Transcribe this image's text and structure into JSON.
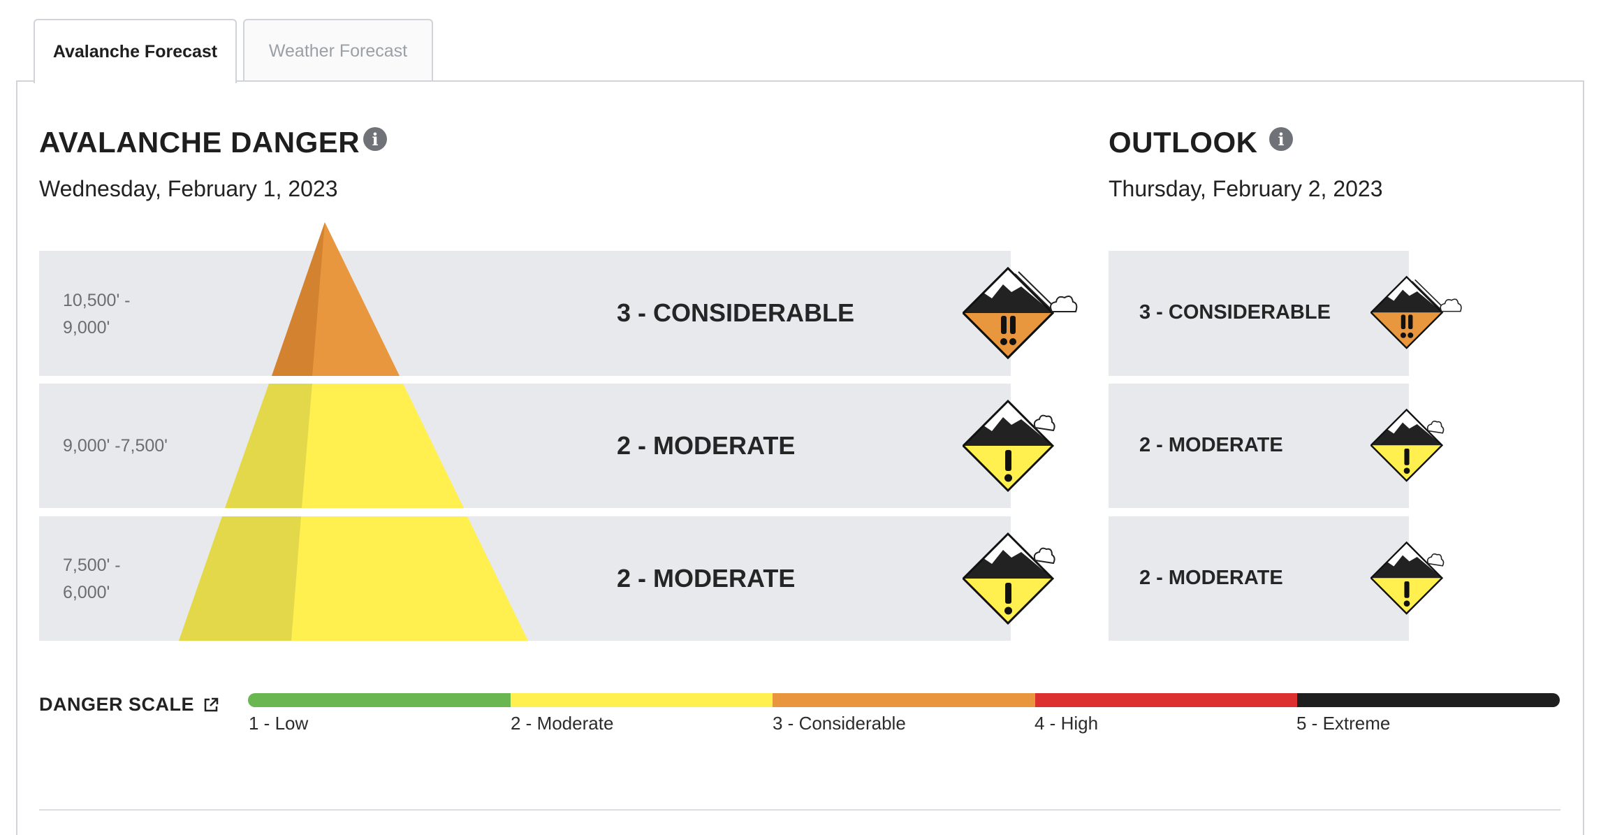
{
  "tabs": [
    {
      "label": "Avalanche Forecast",
      "active": true
    },
    {
      "label": "Weather Forecast",
      "active": false
    }
  ],
  "danger": {
    "title": "AVALANCHE DANGER",
    "date": "Wednesday, February 1, 2023",
    "bands": [
      {
        "elevation_line1": "10,500' -",
        "elevation_line2": "9,000'",
        "rating": "3 - CONSIDERABLE",
        "level": 3,
        "icon": "considerable-danger-icon"
      },
      {
        "elevation_line1": "9,000' -7,500'",
        "elevation_line2": "",
        "rating": "2 - MODERATE",
        "level": 2,
        "icon": "moderate-danger-icon"
      },
      {
        "elevation_line1": "7,500' -",
        "elevation_line2": "6,000'",
        "rating": "2 - MODERATE",
        "level": 2,
        "icon": "moderate-danger-icon"
      }
    ]
  },
  "outlook": {
    "title": "OUTLOOK",
    "date": "Thursday, February 2, 2023",
    "bands": [
      {
        "rating": "3 - CONSIDERABLE",
        "level": 3,
        "icon": "considerable-danger-icon"
      },
      {
        "rating": "2 - MODERATE",
        "level": 2,
        "icon": "moderate-danger-icon"
      },
      {
        "rating": "2 - MODERATE",
        "level": 2,
        "icon": "moderate-danger-icon"
      }
    ]
  },
  "danger_scale": {
    "label": "DANGER SCALE",
    "icon": "external-link-icon",
    "levels": [
      {
        "label": "1 - Low",
        "color": "#6ab651"
      },
      {
        "label": "2 - Moderate",
        "color": "#fff04f"
      },
      {
        "label": "3 - Considerable",
        "color": "#e8953e"
      },
      {
        "label": "4 - High",
        "color": "#dc3030"
      },
      {
        "label": "5 - Extreme",
        "color": "#1f1f1f"
      }
    ]
  },
  "colors": {
    "considerable": "#e8973e",
    "considerable_shade": "#d3822f",
    "moderate": "#fff04f",
    "moderate_shade": "#e2d84a",
    "band_bg": "#e7e9ec"
  }
}
